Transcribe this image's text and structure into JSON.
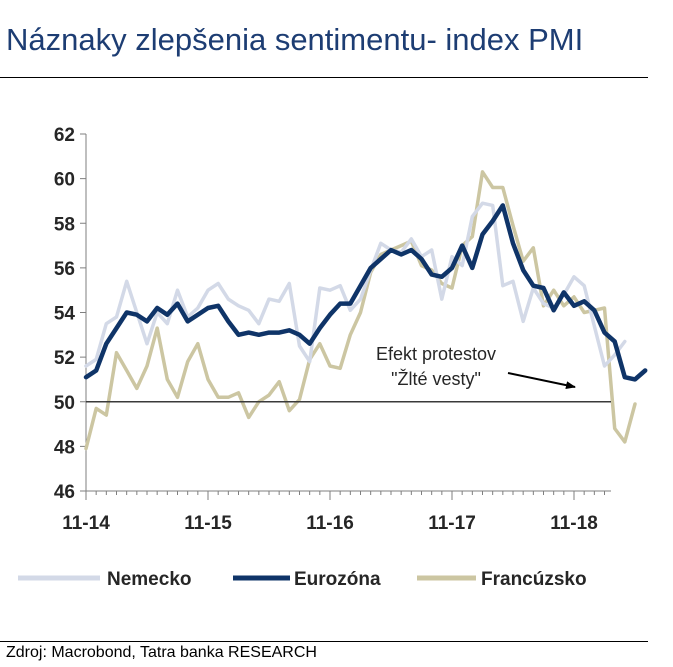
{
  "header": {
    "title": "Náznaky zlepšenia sentimentu- index PMI"
  },
  "footer": {
    "source": "Zdroj: Macrobond, Tatra banka RESEARCH"
  },
  "chart_data": {
    "type": "line",
    "title": "",
    "xlabel": "",
    "ylabel": "",
    "ylim": [
      46,
      62
    ],
    "yticks": [
      46,
      48,
      50,
      52,
      54,
      56,
      58,
      60,
      62
    ],
    "xticks": [
      "11-14",
      "11-15",
      "11-16",
      "11-17",
      "11-18"
    ],
    "reference_line": 50,
    "grid": false,
    "legend_position": "bottom",
    "colors": {
      "Nemecko": "#d3d9e7",
      "Eurozóna": "#0f3468",
      "Francúzsko": "#ccc6a2"
    },
    "series": [
      {
        "name": "Nemecko",
        "values": [
          51.6,
          51.9,
          53.5,
          53.8,
          55.4,
          54.0,
          52.6,
          54.0,
          53.5,
          55.0,
          53.8,
          54.2,
          55.0,
          55.3,
          54.6,
          54.3,
          54.1,
          53.5,
          54.6,
          54.5,
          55.3,
          52.5,
          51.8,
          55.1,
          55.0,
          55.2,
          54.1,
          54.6,
          55.9,
          57.1,
          56.8,
          56.7,
          57.3,
          56.5,
          56.8,
          54.6,
          56.5,
          56.1,
          58.3,
          58.9,
          58.8,
          55.2,
          55.4,
          53.6,
          55.1,
          54.4,
          54.2,
          54.8,
          55.6,
          55.2,
          53.4,
          51.6,
          52.1,
          52.7
        ]
      },
      {
        "name": "Eurozóna",
        "values": [
          51.1,
          51.4,
          52.6,
          53.3,
          54.0,
          53.9,
          53.6,
          54.2,
          53.9,
          54.4,
          53.6,
          53.9,
          54.2,
          54.3,
          53.6,
          53.0,
          53.1,
          53.0,
          53.1,
          53.1,
          53.2,
          53.0,
          52.6,
          53.3,
          53.9,
          54.4,
          54.4,
          55.2,
          56.0,
          56.4,
          56.8,
          56.6,
          56.8,
          56.4,
          55.7,
          55.6,
          56.0,
          57.0,
          56.0,
          57.5,
          58.1,
          58.8,
          57.1,
          55.9,
          55.2,
          55.1,
          54.1,
          54.9,
          54.3,
          54.5,
          54.1,
          53.1,
          52.7,
          51.1,
          51.0,
          51.4
        ]
      },
      {
        "name": "Francúzsko",
        "values": [
          47.9,
          49.7,
          49.4,
          52.2,
          51.4,
          50.6,
          51.6,
          53.3,
          51.0,
          50.2,
          51.8,
          52.6,
          51.0,
          50.2,
          50.2,
          50.4,
          49.3,
          50.0,
          50.3,
          50.9,
          49.6,
          50.1,
          51.9,
          52.6,
          51.6,
          51.5,
          53.0,
          54.0,
          55.8,
          56.6,
          56.8,
          57.0,
          57.2,
          56.1,
          55.9,
          55.3,
          55.1,
          57.0,
          57.4,
          60.3,
          59.6,
          59.6,
          57.9,
          56.3,
          56.9,
          54.3,
          55.0,
          54.3,
          54.7,
          54.0,
          54.1,
          54.2,
          48.8,
          48.2,
          49.9
        ]
      }
    ],
    "annotation": {
      "line1": "Efekt protestov",
      "line2": "\"Žlté vesty\""
    }
  }
}
